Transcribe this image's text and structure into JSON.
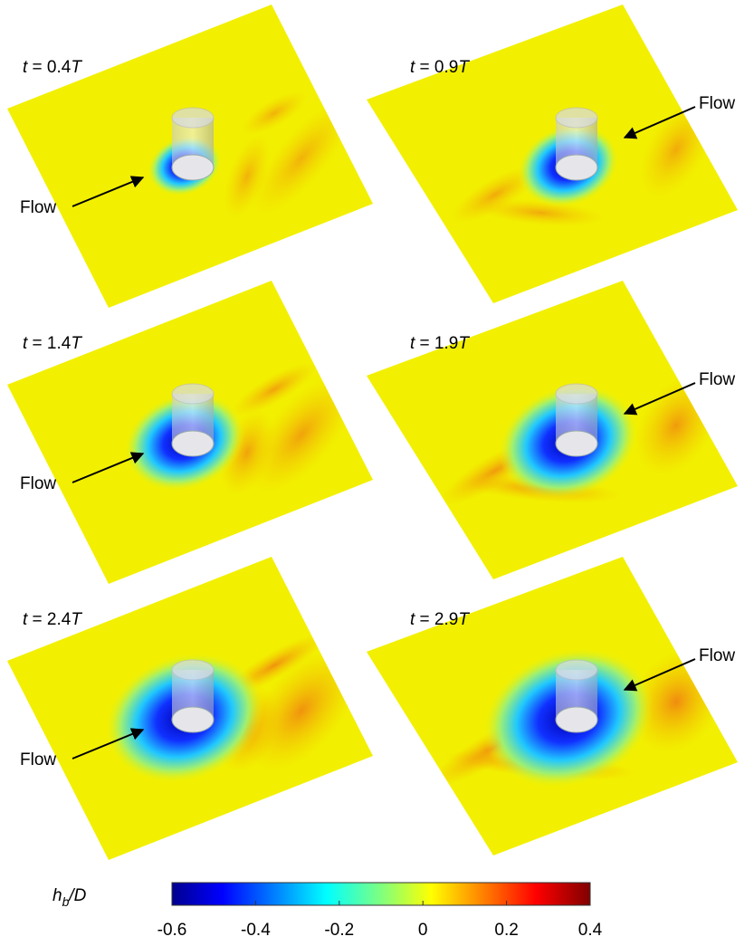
{
  "panels": [
    {
      "time": {
        "symbol": "t",
        "value": " = 0.4",
        "period": "T"
      },
      "flow": "Flow"
    },
    {
      "time": {
        "symbol": "t",
        "value": " = 0.9",
        "period": "T"
      },
      "flow": "Flow"
    },
    {
      "time": {
        "symbol": "t",
        "value": " = 1.4",
        "period": "T"
      },
      "flow": "Flow"
    },
    {
      "time": {
        "symbol": "t",
        "value": " = 1.9",
        "period": "T"
      },
      "flow": "Flow"
    },
    {
      "time": {
        "symbol": "t",
        "value": " = 2.4",
        "period": "T"
      },
      "flow": "Flow"
    },
    {
      "time": {
        "symbol": "t",
        "value": " = 2.9",
        "period": "T"
      },
      "flow": "Flow"
    }
  ],
  "colorbar": {
    "label": {
      "base": "h",
      "sub": "b",
      "rest": "/D"
    },
    "lim": [
      -0.6,
      0.4
    ],
    "ticks": [
      -0.6,
      -0.4,
      -0.2,
      0,
      0.2,
      0.4
    ]
  }
}
